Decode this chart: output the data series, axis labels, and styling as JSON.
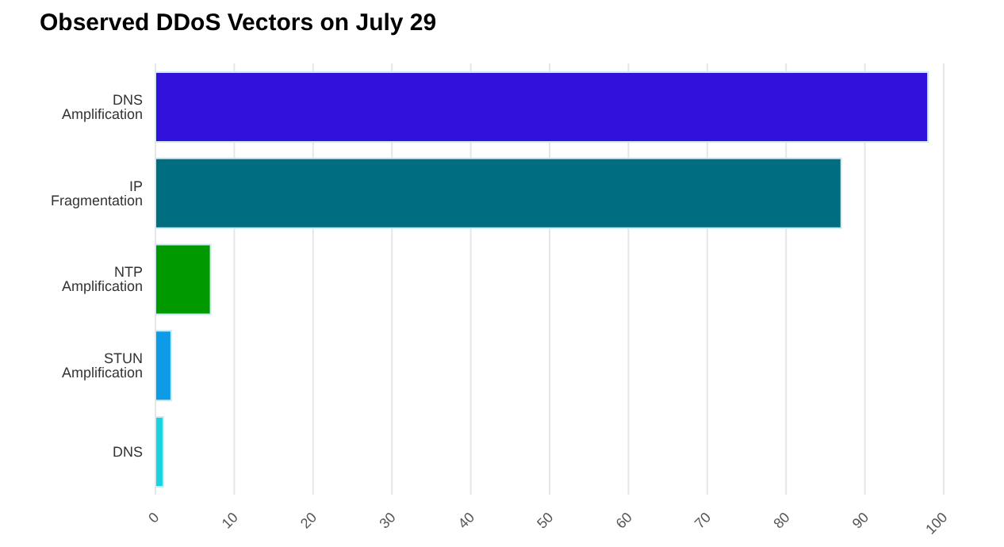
{
  "chart_data": {
    "type": "bar",
    "orientation": "horizontal",
    "title": "Observed DDoS Vectors on July 29",
    "categories": [
      "DNS Amplification",
      "IP Fragmentation",
      "NTP Amplification",
      "STUN Amplification",
      "DNS"
    ],
    "values": [
      98,
      87,
      7,
      2,
      1
    ],
    "colors": [
      "#3311dd",
      "#006e80",
      "#009900",
      "#0d9be8",
      "#1ad3e0"
    ],
    "xlim": [
      0,
      100
    ],
    "xticks": [
      0,
      10,
      20,
      30,
      40,
      50,
      60,
      70,
      80,
      90,
      100
    ],
    "grid": "x"
  }
}
